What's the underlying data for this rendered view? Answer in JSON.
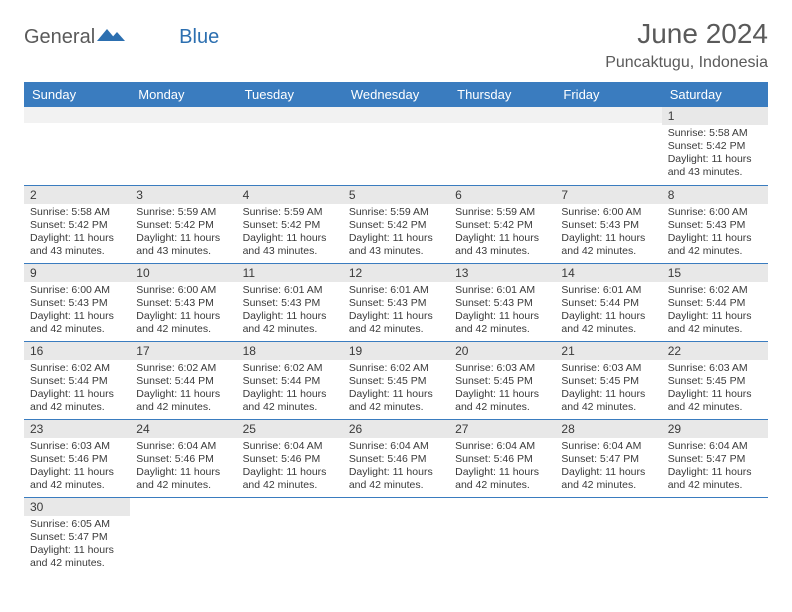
{
  "logo": {
    "main": "General",
    "accent": "Blue"
  },
  "header": {
    "title": "June 2024",
    "location": "Puncaktugu, Indonesia"
  },
  "weekdays": [
    "Sunday",
    "Monday",
    "Tuesday",
    "Wednesday",
    "Thursday",
    "Friday",
    "Saturday"
  ],
  "colors": {
    "header_bg": "#3a7cbf",
    "header_text": "#ffffff",
    "daynum_bg": "#e8e8e8",
    "text": "#3a3a3a",
    "accent": "#2c6fb0",
    "cell_border": "#3a7cbf"
  },
  "weeks": [
    [
      null,
      null,
      null,
      null,
      null,
      null,
      {
        "n": "1",
        "sr": "5:58 AM",
        "ss": "5:42 PM",
        "d1": "11 hours",
        "d2": "and 43 minutes."
      }
    ],
    [
      {
        "n": "2",
        "sr": "5:58 AM",
        "ss": "5:42 PM",
        "d1": "11 hours",
        "d2": "and 43 minutes."
      },
      {
        "n": "3",
        "sr": "5:59 AM",
        "ss": "5:42 PM",
        "d1": "11 hours",
        "d2": "and 43 minutes."
      },
      {
        "n": "4",
        "sr": "5:59 AM",
        "ss": "5:42 PM",
        "d1": "11 hours",
        "d2": "and 43 minutes."
      },
      {
        "n": "5",
        "sr": "5:59 AM",
        "ss": "5:42 PM",
        "d1": "11 hours",
        "d2": "and 43 minutes."
      },
      {
        "n": "6",
        "sr": "5:59 AM",
        "ss": "5:42 PM",
        "d1": "11 hours",
        "d2": "and 43 minutes."
      },
      {
        "n": "7",
        "sr": "6:00 AM",
        "ss": "5:43 PM",
        "d1": "11 hours",
        "d2": "and 42 minutes."
      },
      {
        "n": "8",
        "sr": "6:00 AM",
        "ss": "5:43 PM",
        "d1": "11 hours",
        "d2": "and 42 minutes."
      }
    ],
    [
      {
        "n": "9",
        "sr": "6:00 AM",
        "ss": "5:43 PM",
        "d1": "11 hours",
        "d2": "and 42 minutes."
      },
      {
        "n": "10",
        "sr": "6:00 AM",
        "ss": "5:43 PM",
        "d1": "11 hours",
        "d2": "and 42 minutes."
      },
      {
        "n": "11",
        "sr": "6:01 AM",
        "ss": "5:43 PM",
        "d1": "11 hours",
        "d2": "and 42 minutes."
      },
      {
        "n": "12",
        "sr": "6:01 AM",
        "ss": "5:43 PM",
        "d1": "11 hours",
        "d2": "and 42 minutes."
      },
      {
        "n": "13",
        "sr": "6:01 AM",
        "ss": "5:43 PM",
        "d1": "11 hours",
        "d2": "and 42 minutes."
      },
      {
        "n": "14",
        "sr": "6:01 AM",
        "ss": "5:44 PM",
        "d1": "11 hours",
        "d2": "and 42 minutes."
      },
      {
        "n": "15",
        "sr": "6:02 AM",
        "ss": "5:44 PM",
        "d1": "11 hours",
        "d2": "and 42 minutes."
      }
    ],
    [
      {
        "n": "16",
        "sr": "6:02 AM",
        "ss": "5:44 PM",
        "d1": "11 hours",
        "d2": "and 42 minutes."
      },
      {
        "n": "17",
        "sr": "6:02 AM",
        "ss": "5:44 PM",
        "d1": "11 hours",
        "d2": "and 42 minutes."
      },
      {
        "n": "18",
        "sr": "6:02 AM",
        "ss": "5:44 PM",
        "d1": "11 hours",
        "d2": "and 42 minutes."
      },
      {
        "n": "19",
        "sr": "6:02 AM",
        "ss": "5:45 PM",
        "d1": "11 hours",
        "d2": "and 42 minutes."
      },
      {
        "n": "20",
        "sr": "6:03 AM",
        "ss": "5:45 PM",
        "d1": "11 hours",
        "d2": "and 42 minutes."
      },
      {
        "n": "21",
        "sr": "6:03 AM",
        "ss": "5:45 PM",
        "d1": "11 hours",
        "d2": "and 42 minutes."
      },
      {
        "n": "22",
        "sr": "6:03 AM",
        "ss": "5:45 PM",
        "d1": "11 hours",
        "d2": "and 42 minutes."
      }
    ],
    [
      {
        "n": "23",
        "sr": "6:03 AM",
        "ss": "5:46 PM",
        "d1": "11 hours",
        "d2": "and 42 minutes."
      },
      {
        "n": "24",
        "sr": "6:04 AM",
        "ss": "5:46 PM",
        "d1": "11 hours",
        "d2": "and 42 minutes."
      },
      {
        "n": "25",
        "sr": "6:04 AM",
        "ss": "5:46 PM",
        "d1": "11 hours",
        "d2": "and 42 minutes."
      },
      {
        "n": "26",
        "sr": "6:04 AM",
        "ss": "5:46 PM",
        "d1": "11 hours",
        "d2": "and 42 minutes."
      },
      {
        "n": "27",
        "sr": "6:04 AM",
        "ss": "5:46 PM",
        "d1": "11 hours",
        "d2": "and 42 minutes."
      },
      {
        "n": "28",
        "sr": "6:04 AM",
        "ss": "5:47 PM",
        "d1": "11 hours",
        "d2": "and 42 minutes."
      },
      {
        "n": "29",
        "sr": "6:04 AM",
        "ss": "5:47 PM",
        "d1": "11 hours",
        "d2": "and 42 minutes."
      }
    ],
    [
      {
        "n": "30",
        "sr": "6:05 AM",
        "ss": "5:47 PM",
        "d1": "11 hours",
        "d2": "and 42 minutes."
      },
      null,
      null,
      null,
      null,
      null,
      null
    ]
  ],
  "labels": {
    "sunrise_prefix": "Sunrise: ",
    "sunset_prefix": "Sunset: ",
    "daylight_prefix": "Daylight: "
  }
}
